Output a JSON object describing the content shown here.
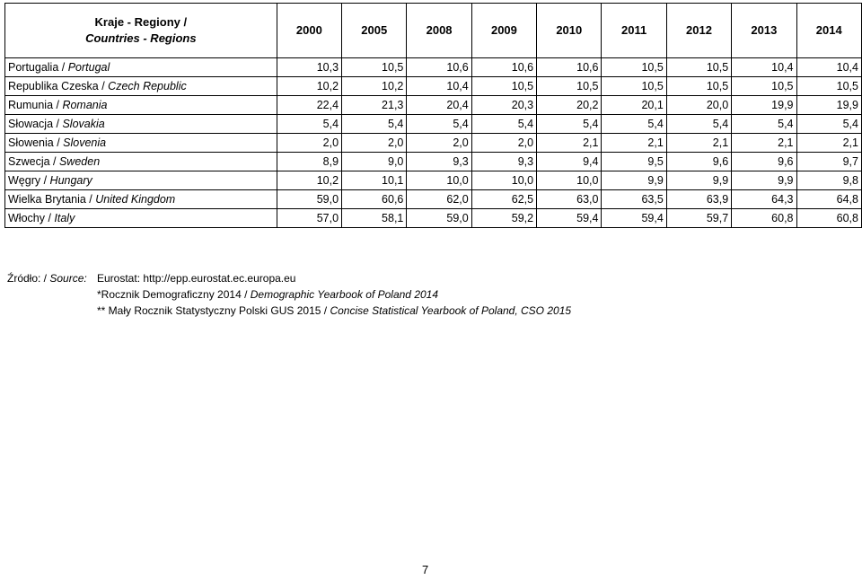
{
  "header": {
    "region_pl": "Kraje - Regiony /",
    "region_en": "Countries - Regions",
    "years": [
      "2000",
      "2005",
      "2008",
      "2009",
      "2010",
      "2011",
      "2012",
      "2013",
      "2014"
    ]
  },
  "rows": [
    {
      "pl": "Portugalia / ",
      "en": "Portugal",
      "values": [
        "10,3",
        "10,5",
        "10,6",
        "10,6",
        "10,6",
        "10,5",
        "10,5",
        "10,4",
        "10,4"
      ]
    },
    {
      "pl": "Republika Czeska / ",
      "en": "Czech Republic",
      "values": [
        "10,2",
        "10,2",
        "10,4",
        "10,5",
        "10,5",
        "10,5",
        "10,5",
        "10,5",
        "10,5"
      ]
    },
    {
      "pl": "Rumunia / ",
      "en": "Romania",
      "values": [
        "22,4",
        "21,3",
        "20,4",
        "20,3",
        "20,2",
        "20,1",
        "20,0",
        "19,9",
        "19,9"
      ]
    },
    {
      "pl": "Słowacja / ",
      "en": "Slovakia",
      "values": [
        "5,4",
        "5,4",
        "5,4",
        "5,4",
        "5,4",
        "5,4",
        "5,4",
        "5,4",
        "5,4"
      ]
    },
    {
      "pl": "Słowenia / ",
      "en": "Slovenia",
      "values": [
        "2,0",
        "2,0",
        "2,0",
        "2,0",
        "2,1",
        "2,1",
        "2,1",
        "2,1",
        "2,1"
      ]
    },
    {
      "pl": "Szwecja / ",
      "en": "Sweden",
      "values": [
        "8,9",
        "9,0",
        "9,3",
        "9,3",
        "9,4",
        "9,5",
        "9,6",
        "9,6",
        "9,7"
      ]
    },
    {
      "pl": "Węgry / ",
      "en": "Hungary",
      "values": [
        "10,2",
        "10,1",
        "10,0",
        "10,0",
        "10,0",
        "9,9",
        "9,9",
        "9,9",
        "9,8"
      ]
    },
    {
      "pl": "Wielka Brytania / ",
      "en": "United Kingdom",
      "values": [
        "59,0",
        "60,6",
        "62,0",
        "62,5",
        "63,0",
        "63,5",
        "63,9",
        "64,3",
        "64,8"
      ]
    },
    {
      "pl": "Włochy / ",
      "en": "Italy",
      "values": [
        "57,0",
        "58,1",
        "59,0",
        "59,2",
        "59,4",
        "59,4",
        "59,7",
        "60,8",
        "60,8"
      ]
    }
  ],
  "sources": {
    "label_pl": "Źródło: / ",
    "label_en": "Source:",
    "line1": "Eurostat: http://epp.eurostat.ec.europa.eu",
    "line2_pl": "*Rocznik Demograficzny 2014 / ",
    "line2_en": "Demographic Yearbook of Poland 2014",
    "line3_pl": "** Mały Rocznik Statystyczny Polski GUS  2015 / ",
    "line3_en": "Concise Statistical Yearbook of Poland, CSO 2015"
  },
  "page_number": "7"
}
